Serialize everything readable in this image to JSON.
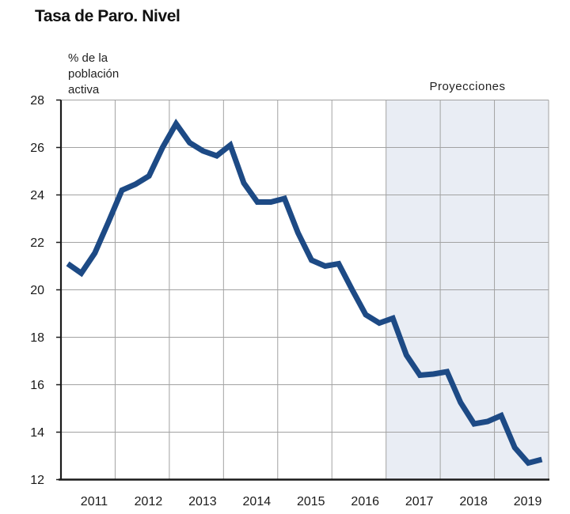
{
  "chart_data": {
    "type": "line",
    "title": "Tasa de Paro. Nivel",
    "ylabel": "% de la población activa",
    "annotation": "Proyecciones",
    "x_tick_labels": [
      "2011",
      "2012",
      "2013",
      "2014",
      "2015",
      "2016",
      "2017",
      "2018",
      "2019"
    ],
    "y_ticks": [
      12,
      14,
      16,
      18,
      20,
      22,
      24,
      26,
      28
    ],
    "ylim": [
      12,
      28
    ],
    "xlim_years": [
      2011,
      2020
    ],
    "projection_start_year": 2017,
    "grid": true,
    "legend": false,
    "series": [
      {
        "name": "Tasa de paro (% de la población activa)",
        "frequency": "quarterly",
        "start": "2011Q1",
        "values": [
          21.1,
          20.7,
          21.55,
          22.85,
          24.2,
          24.45,
          24.8,
          26.0,
          27.0,
          26.2,
          25.85,
          25.65,
          26.1,
          24.5,
          23.7,
          23.7,
          23.85,
          22.4,
          21.25,
          21.0,
          21.1,
          20.0,
          18.95,
          18.6,
          18.8,
          17.25,
          16.4,
          16.45,
          16.55,
          15.25,
          14.35,
          14.45,
          14.7,
          13.35,
          12.7,
          12.85
        ]
      }
    ],
    "colors": {
      "line": "#1d4a85",
      "projection_fill": "#e9edf4",
      "grid": "#a2a2a2",
      "axis": "#1a1a1a",
      "text": "#1a1a1a"
    }
  }
}
